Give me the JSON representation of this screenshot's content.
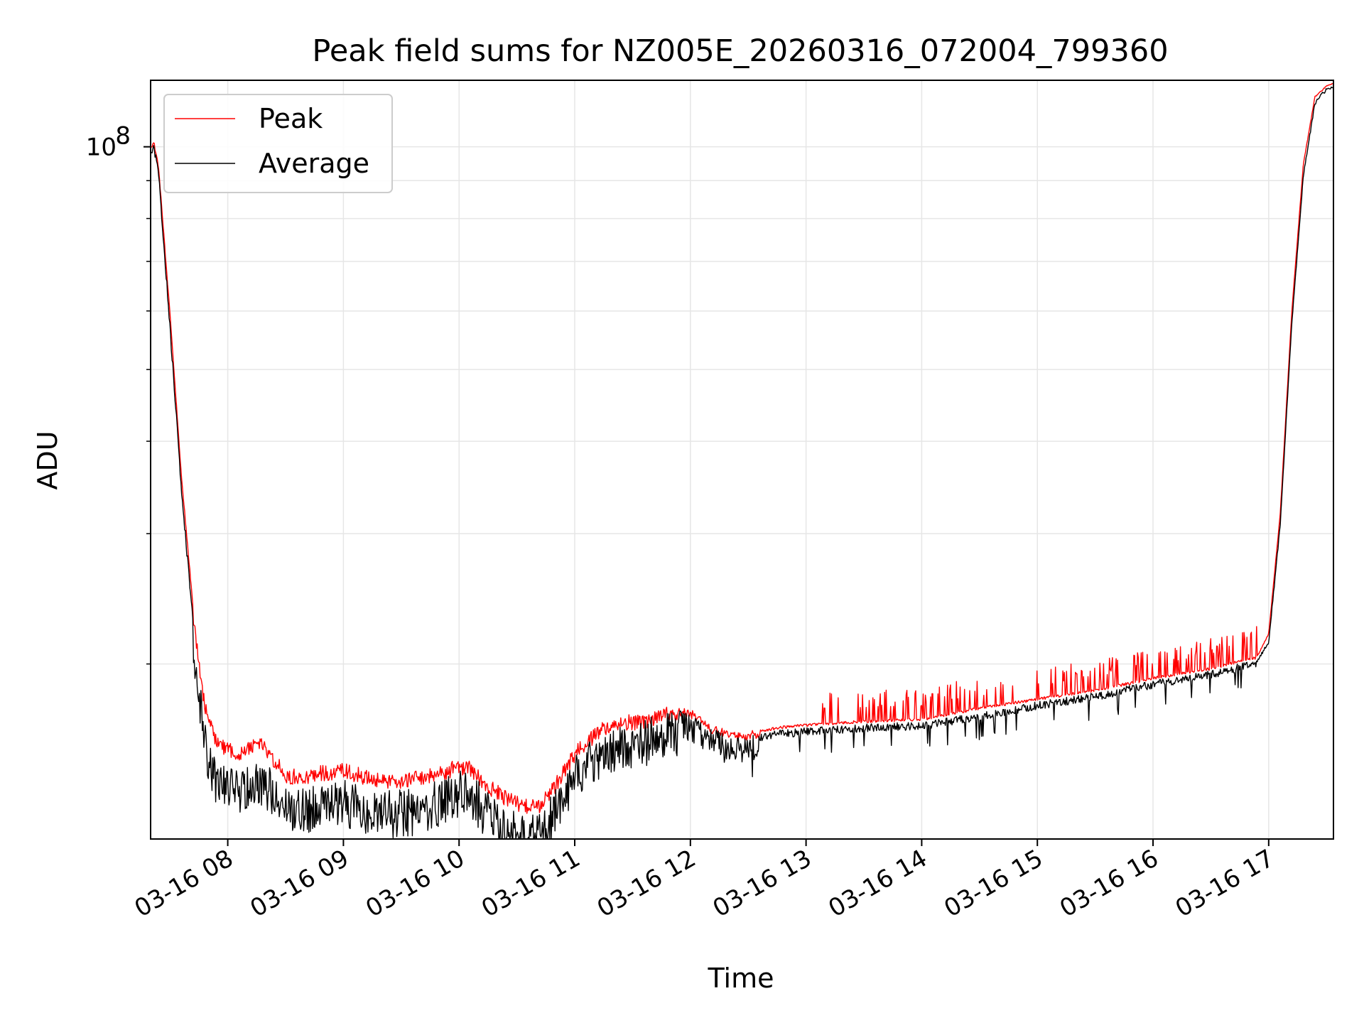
{
  "chart_data": {
    "type": "line",
    "title": "Peak field sums for NZ005E_20260316_072004_799360",
    "xlabel": "Time",
    "ylabel": "ADU",
    "yscale": "log",
    "grid": true,
    "legend_position": "upper-left",
    "xlim_hours": [
      7.333,
      17.56
    ],
    "ylim": [
      11600000,
      123000000
    ],
    "x_ticks": [
      {
        "hour": 8,
        "label": "03-16 08"
      },
      {
        "hour": 9,
        "label": "03-16 09"
      },
      {
        "hour": 10,
        "label": "03-16 10"
      },
      {
        "hour": 11,
        "label": "03-16 11"
      },
      {
        "hour": 12,
        "label": "03-16 12"
      },
      {
        "hour": 13,
        "label": "03-16 13"
      },
      {
        "hour": 14,
        "label": "03-16 14"
      },
      {
        "hour": 15,
        "label": "03-16 15"
      },
      {
        "hour": 16,
        "label": "03-16 16"
      },
      {
        "hour": 17,
        "label": "03-16 17"
      }
    ],
    "y_major_ticks": [
      {
        "value": 100000000,
        "base": "10",
        "exp": "8"
      }
    ],
    "y_minor_ticks": [
      20000000,
      30000000,
      40000000,
      50000000,
      60000000,
      70000000,
      80000000,
      90000000
    ],
    "series": [
      {
        "name": "Peak",
        "color": "#ff0000",
        "x_hours": [
          7.333,
          7.36,
          7.4,
          7.5,
          7.6,
          7.7,
          7.8,
          7.9,
          8.0,
          8.1,
          8.2,
          8.3,
          8.4,
          8.5,
          8.6,
          8.8,
          9.0,
          9.2,
          9.4,
          9.6,
          9.8,
          10.0,
          10.1,
          10.2,
          10.4,
          10.6,
          10.7,
          10.8,
          11.0,
          11.2,
          11.4,
          11.6,
          11.8,
          11.9,
          12.0,
          12.2,
          12.4,
          12.6,
          12.8,
          13.0,
          13.5,
          14.0,
          14.5,
          15.0,
          15.5,
          16.0,
          16.5,
          16.9,
          17.0,
          17.1,
          17.2,
          17.3,
          17.4,
          17.45,
          17.5,
          17.55
        ],
        "values": [
          100000000,
          102000000,
          95000000,
          60000000,
          36000000,
          24000000,
          18000000,
          16000000,
          15800000,
          15500000,
          15900000,
          16000000,
          15200000,
          14500000,
          14400000,
          14600000,
          14700000,
          14400000,
          14200000,
          14300000,
          14500000,
          14900000,
          14800000,
          14200000,
          13500000,
          13100000,
          13200000,
          13800000,
          15500000,
          16600000,
          17100000,
          17100000,
          17500000,
          17500000,
          17400000,
          16500000,
          16200000,
          16300000,
          16500000,
          16600000,
          16800000,
          16900000,
          17500000,
          18000000,
          18500000,
          19200000,
          19800000,
          20500000,
          22000000,
          32000000,
          60000000,
          95000000,
          117000000,
          119000000,
          121000000,
          122000000
        ]
      },
      {
        "name": "Average",
        "color": "#000000",
        "x_hours": [
          7.333,
          7.36,
          7.4,
          7.5,
          7.6,
          7.7,
          7.8,
          7.9,
          8.0,
          8.1,
          8.2,
          8.3,
          8.4,
          8.5,
          8.6,
          8.8,
          9.0,
          9.2,
          9.4,
          9.6,
          9.8,
          10.0,
          10.1,
          10.2,
          10.4,
          10.6,
          10.7,
          10.8,
          11.0,
          11.2,
          11.4,
          11.6,
          11.8,
          11.9,
          12.0,
          12.2,
          12.4,
          12.6,
          12.8,
          13.0,
          13.5,
          14.0,
          14.5,
          15.0,
          15.5,
          16.0,
          16.5,
          16.9,
          17.0,
          17.1,
          17.2,
          17.3,
          17.4,
          17.45,
          17.5,
          17.55
        ],
        "values": [
          100000000,
          101000000,
          94000000,
          58000000,
          35000000,
          23000000,
          16800000,
          14800000,
          14600000,
          14400000,
          14800000,
          15000000,
          14200000,
          13700000,
          13600000,
          13900000,
          14000000,
          13700000,
          13500000,
          13600000,
          13900000,
          14400000,
          14300000,
          13700000,
          13000000,
          12600000,
          12700000,
          13300000,
          15000000,
          16200000,
          16700000,
          16800000,
          17300000,
          17300000,
          17100000,
          16300000,
          16000000,
          16100000,
          16300000,
          16400000,
          16600000,
          16700000,
          17200000,
          17800000,
          18300000,
          19000000,
          19600000,
          20300000,
          21500000,
          31000000,
          58000000,
          92000000,
          115000000,
          118000000,
          120000000,
          121000000
        ]
      }
    ]
  }
}
